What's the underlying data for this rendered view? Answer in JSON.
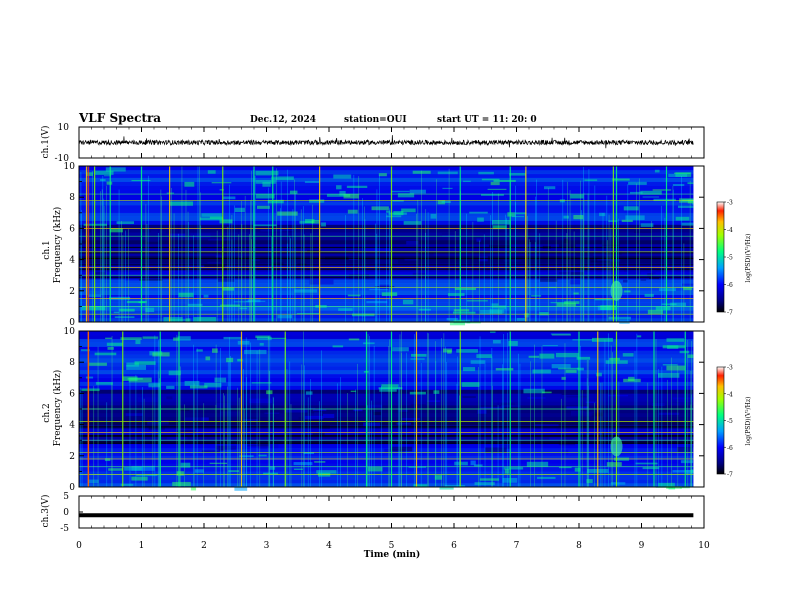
{
  "header": {
    "title": "VLF Spectra",
    "date": "Dec.12, 2024",
    "station": "station=OUI",
    "start_ut": "start  UT =   11: 20: 0"
  },
  "colors": {
    "colormap": [
      "#000000",
      "#000060",
      "#0000c8",
      "#0060ff",
      "#00c8ff",
      "#00ff80",
      "#80ff00",
      "#ffd000",
      "#ff3000",
      "#ffffff"
    ]
  },
  "chart_data": [
    {
      "type": "line",
      "panel": "ch1-waveform",
      "ylabel": "ch.1(V)",
      "ylim": [
        -10,
        10
      ],
      "y_ticks": [
        "10",
        "-10"
      ],
      "x_range": [
        0,
        9.83
      ],
      "baseline": 0,
      "amplitude": 1.5
    },
    {
      "type": "heatmap",
      "panel": "ch1-spectrogram",
      "ylabel": "Frequency (kHz)",
      "channel_label": "ch.1",
      "ylim": [
        0,
        10
      ],
      "y_ticks": [
        "0",
        "2",
        "4",
        "6",
        "8",
        "10"
      ],
      "x_range": [
        0,
        9.83
      ],
      "colorbar": {
        "label": "log(PSD)(V²/Hz)",
        "range": [
          -7,
          -3
        ],
        "ticks": [
          "-3",
          "-4",
          "-5",
          "-6",
          "-7"
        ]
      },
      "lines_khz": [
        0.5,
        1.0,
        1.5,
        2.2,
        3.0,
        3.5,
        4.5,
        5.5,
        6.0,
        7.8,
        8.2
      ],
      "spikes_min": [
        0.12,
        0.25,
        0.5,
        1.0,
        1.45,
        2.3,
        2.8,
        3.1,
        3.85,
        5.0,
        6.1,
        6.9,
        7.15,
        8.55,
        8.6,
        9.4
      ]
    },
    {
      "type": "heatmap",
      "panel": "ch2-spectrogram",
      "ylabel": "Frequency (kHz)",
      "channel_label": "ch.2",
      "ylim": [
        0,
        10
      ],
      "y_ticks": [
        "0",
        "2",
        "4",
        "6",
        "8",
        "10"
      ],
      "x_range": [
        0,
        9.83
      ],
      "colorbar": {
        "label": "log(PSD)(V²/Hz)",
        "range": [
          -7,
          -3
        ],
        "ticks": [
          "-3",
          "-4",
          "-5",
          "-6",
          "-7"
        ]
      },
      "lines_khz": [
        0.8,
        1.3,
        1.8,
        2.2,
        3.0,
        3.5,
        4.2,
        5.0
      ],
      "spikes_min": [
        0.15,
        0.7,
        1.3,
        1.6,
        2.6,
        3.3,
        4.6,
        5.0,
        5.4,
        6.1,
        6.9,
        8.0,
        8.3,
        8.6,
        9.2,
        9.7
      ]
    },
    {
      "type": "line",
      "panel": "ch3-waveform",
      "ylabel": "ch.3(V)",
      "ylim": [
        -5,
        5
      ],
      "y_ticks": [
        "5",
        "0",
        "-5"
      ],
      "x_range": [
        0,
        9.83
      ],
      "baseline": -1
    }
  ],
  "xaxis": {
    "label": "Time (min)",
    "range": [
      0,
      10
    ],
    "ticks": [
      "0",
      "1",
      "2",
      "3",
      "4",
      "5",
      "6",
      "7",
      "8",
      "9",
      "10"
    ]
  }
}
